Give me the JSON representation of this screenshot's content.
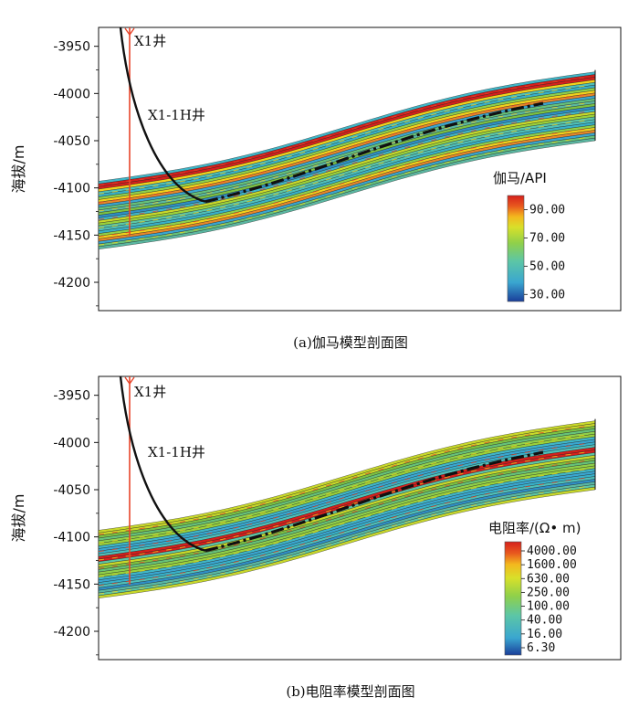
{
  "chart_data": [
    {
      "type": "heatmap",
      "panel": "a",
      "caption": "(a)伽马模型剖面图",
      "ylabel": "海拔/m",
      "ylim": [
        -4230,
        -3930
      ],
      "yticks": [
        -3950,
        -4000,
        -4050,
        -4100,
        -4150,
        -4200
      ],
      "ytick_labels": [
        "-3950",
        "-4000",
        "-4050",
        "-4100",
        "-4150",
        "-4200"
      ],
      "colorbar": {
        "title": "伽马/API",
        "tick_labels": [
          "90.00",
          "70.00",
          "50.00",
          "30.00"
        ],
        "range": [
          25,
          100
        ]
      },
      "wells": [
        {
          "name": "X1井",
          "type": "vertical"
        },
        {
          "name": "X1-1H井",
          "type": "horizontal"
        }
      ]
    },
    {
      "type": "heatmap",
      "panel": "b",
      "caption": "(b)电阻率模型剖面图",
      "ylabel": "海拔/m",
      "ylim": [
        -4230,
        -3930
      ],
      "yticks": [
        -3950,
        -4000,
        -4050,
        -4100,
        -4150,
        -4200
      ],
      "ytick_labels": [
        "-3950",
        "-4000",
        "-4050",
        "-4100",
        "-4150",
        "-4200"
      ],
      "colorbar": {
        "title": "电阻率/(Ω• m)",
        "tick_labels": [
          "4000.00",
          "1600.00",
          "630.00",
          "250.00",
          "100.00",
          "40.00",
          "16.00",
          "6.30"
        ],
        "scale": "log"
      },
      "wells": [
        {
          "name": "X1井",
          "type": "vertical"
        },
        {
          "name": "X1-1H井",
          "type": "horizontal"
        }
      ]
    }
  ],
  "colors": {
    "vertical_well": "#e8452a",
    "horizontal_well": "#111111",
    "high": "#d6201c",
    "mid_high": "#f2d21c",
    "mid": "#7cc242",
    "mid_low": "#3fb6c8",
    "low": "#1f4fa3"
  }
}
